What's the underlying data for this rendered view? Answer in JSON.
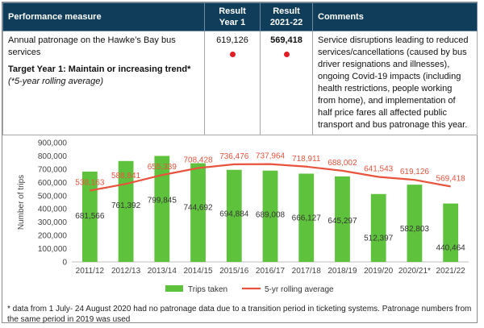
{
  "table": {
    "headers": {
      "measure": "Performance measure",
      "year1": "Result Year 1",
      "year2": "Result 2021-22",
      "comments": "Comments"
    },
    "row": {
      "measure": "Annual patronage on the Hawke’s Bay bus services",
      "target": "Target Year 1: Maintain or increasing trend*",
      "note": "(*5-year rolling average)",
      "year1": "619,126",
      "year2": "569,418",
      "status_color": "#e21d23",
      "comments": "Service disruptions leading to reduced services/cancellations (caused by bus driver resignations and illnesses), ongoing Covid-19 impacts (including health restrictions, people working from home), and implementation of half price fares all affected public transport and bus patronage this year."
    }
  },
  "chart_data": {
    "type": "bar",
    "categories": [
      "2011/12",
      "2012/13",
      "2013/14",
      "2014/15",
      "2015/16",
      "2016/17",
      "2017/18",
      "2018/19",
      "2019/20",
      "2020/21*",
      "2021/22"
    ],
    "series": [
      {
        "name": "Trips taken",
        "type": "bar",
        "color": "#5fc23c",
        "values": [
          681566,
          761392,
          799845,
          744692,
          694884,
          689008,
          666127,
          645297,
          512397,
          582803,
          440464
        ],
        "labels": [
          "681,566",
          "761,392",
          "799,845",
          "744,692",
          "694,884",
          "689,008",
          "666,127",
          "645,297",
          "512,397",
          "582,803",
          "440,464"
        ]
      },
      {
        "name": "5-yr rolling average",
        "type": "line",
        "color": "#e8533d",
        "values": [
          538163,
          588841,
          655339,
          708428,
          736476,
          737964,
          718911,
          688002,
          641543,
          619126,
          569418
        ],
        "labels": [
          "538,163",
          "588,841",
          "655,339",
          "708,428",
          "736,476",
          "737,964",
          "718,911",
          "688,002",
          "641,543",
          "619,126",
          "569,418"
        ]
      }
    ],
    "ylabel": "Number of trips",
    "ylim": [
      0,
      900000
    ],
    "yticks": [
      "0",
      "100,000",
      "200,000",
      "300,000",
      "400,000",
      "500,000",
      "600,000",
      "700,000",
      "800,000",
      "900,000"
    ],
    "grid": false,
    "legend": "bottom"
  },
  "footnote": "* data from 1 July- 24 August 2020 had no patronage data due to a transition period in ticketing systems. Patronage numbers from the same period in 2019 was used"
}
